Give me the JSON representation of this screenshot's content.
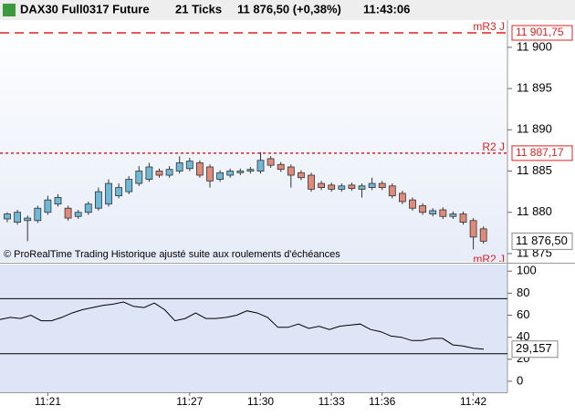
{
  "header": {
    "symbol": "DAX30 Full0317 Future",
    "ticks": "21 Ticks",
    "price": "11 876,50 (+0,38%)",
    "time": "11:43:06"
  },
  "watermark": "© ProRealTime Trading Historique ajusté suite aux roulements d'échéances",
  "chart_data": [
    {
      "type": "candlestick",
      "categories": [
        null,
        null,
        null,
        null,
        "11:21",
        null,
        null,
        null,
        null,
        null,
        null,
        null,
        null,
        null,
        null,
        null,
        null,
        null,
        "11:27",
        null,
        null,
        null,
        null,
        null,
        null,
        "11:30",
        null,
        null,
        null,
        null,
        null,
        null,
        "11:33",
        null,
        null,
        null,
        null,
        "11:36",
        null,
        null,
        null,
        null,
        null,
        null,
        null,
        null,
        "11:42",
        null
      ],
      "open": [
        11879.2,
        11878.8,
        11879.0,
        11879.0,
        11880.0,
        11881.0,
        11880.5,
        11879.5,
        11880.0,
        11880.5,
        11881.0,
        11882.0,
        11882.5,
        11883.5,
        11884.0,
        11885.0,
        11884.5,
        11885.0,
        11885.3,
        11886.0,
        11885.5,
        11884.0,
        11884.5,
        11884.8,
        11885.0,
        11885.0,
        11886.5,
        11885.8,
        11885.5,
        11884.8,
        11884.5,
        11883.5,
        11883.3,
        11882.8,
        11883.3,
        11882.8,
        11883.0,
        11883.5,
        11883.2,
        11882.3,
        11881.5,
        11880.8,
        11879.8,
        11880.3,
        11879.5,
        11879.8,
        11879.0,
        11878.0
      ],
      "high": [
        11880.0,
        11880.3,
        11879.6,
        11880.8,
        11882.0,
        11882.2,
        11880.8,
        11880.3,
        11881.3,
        11883.0,
        11884.0,
        11883.5,
        11884.4,
        11885.6,
        11886.0,
        11885.3,
        11885.6,
        11886.8,
        11886.6,
        11886.3,
        11885.8,
        11885.1,
        11885.3,
        11885.3,
        11885.5,
        11887.3,
        11886.8,
        11886.1,
        11885.8,
        11885.1,
        11884.8,
        11883.8,
        11883.6,
        11883.5,
        11883.6,
        11883.5,
        11884.2,
        11883.8,
        11883.5,
        11882.6,
        11881.8,
        11881.1,
        11880.5,
        11880.6,
        11880.1,
        11880.1,
        11879.3,
        11878.3
      ],
      "low": [
        11878.8,
        11878.5,
        11876.5,
        11878.7,
        11879.7,
        11880.7,
        11879.0,
        11879.2,
        11879.7,
        11880.2,
        11880.7,
        11881.7,
        11882.2,
        11883.2,
        11883.7,
        11884.2,
        11884.2,
        11884.7,
        11885.0,
        11884.2,
        11883.0,
        11883.7,
        11884.2,
        11884.5,
        11884.7,
        11884.7,
        11885.4,
        11884.9,
        11883.0,
        11883.9,
        11882.5,
        11882.7,
        11882.5,
        11882.5,
        11882.6,
        11881.8,
        11882.7,
        11882.7,
        11881.7,
        11881.0,
        11880.2,
        11879.7,
        11879.5,
        11879.2,
        11879.2,
        11878.5,
        11875.5,
        11876.2
      ],
      "close": [
        11879.8,
        11880.0,
        11879.3,
        11880.5,
        11881.5,
        11881.8,
        11879.3,
        11880.0,
        11881.0,
        11882.5,
        11883.5,
        11883.0,
        11884.0,
        11885.0,
        11885.5,
        11884.5,
        11885.2,
        11886.0,
        11886.2,
        11884.5,
        11883.8,
        11884.8,
        11885.0,
        11885.0,
        11885.2,
        11886.3,
        11885.7,
        11885.2,
        11884.5,
        11884.2,
        11882.8,
        11883.0,
        11882.8,
        11883.2,
        11882.9,
        11883.2,
        11883.5,
        11883.0,
        11882.0,
        11881.3,
        11880.5,
        11880.0,
        11880.2,
        11879.5,
        11879.8,
        11878.8,
        11877.0,
        11876.5
      ],
      "up_color": "#6fb8d6",
      "down_color": "#e08a7a",
      "ylim": [
        11874,
        11903.3
      ],
      "yticks": [
        {
          "value": 11900,
          "label": "11 900"
        },
        {
          "value": 11895,
          "label": "11 895"
        },
        {
          "value": 11890,
          "label": "11 890"
        },
        {
          "value": 11885,
          "label": "11 885"
        },
        {
          "value": 11880,
          "label": "11 880"
        },
        {
          "value": 11875,
          "label": "11 875"
        }
      ],
      "levels": [
        {
          "name": "mR3 J",
          "value": 11901.75,
          "label": "11 901,75",
          "dash": "10,6"
        },
        {
          "name": "R2 J",
          "value": 11887.17,
          "label": "11 887,17",
          "dash": "3,3"
        },
        {
          "name": "mR2 J",
          "value": 11873.6
        }
      ],
      "last_price": {
        "value": 11876.5,
        "label": "11 876,50"
      }
    },
    {
      "type": "line",
      "color": "#000000",
      "values": [
        56,
        58,
        57,
        60,
        55,
        55,
        58,
        62,
        65,
        67,
        69,
        70,
        72,
        68,
        67,
        71,
        65,
        55,
        57,
        62,
        57,
        57,
        58,
        60,
        64,
        62,
        58,
        49,
        49,
        52,
        48,
        50,
        47,
        50,
        51,
        52,
        47,
        45,
        41,
        40,
        37,
        37,
        39,
        39,
        33,
        32,
        30,
        29.157
      ],
      "ylim": [
        -10,
        106
      ],
      "yticks": [
        100,
        80,
        60,
        40,
        20,
        0
      ],
      "hlines": [
        75,
        25
      ],
      "last_value": {
        "value": 29.157,
        "label": "29,157"
      }
    }
  ]
}
